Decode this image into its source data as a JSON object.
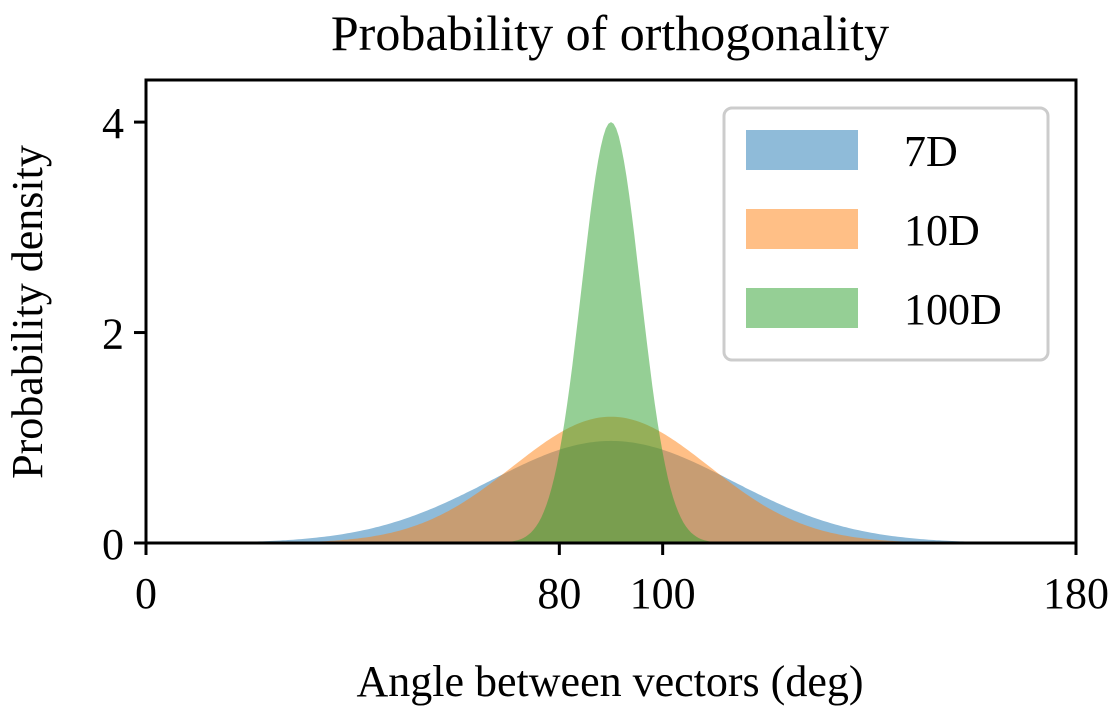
{
  "chart_data": {
    "type": "area",
    "title": "Probability of orthogonality",
    "xlabel": "Angle between vectors (deg)",
    "ylabel": "Probability density",
    "xlim": [
      0,
      180
    ],
    "ylim": [
      0,
      4.4
    ],
    "xticks": [
      0,
      80,
      100,
      180
    ],
    "yticks": [
      0,
      2,
      4
    ],
    "legend_position": "top-right",
    "series": [
      {
        "name": "7D",
        "color": "#1f77b4",
        "mean": 90,
        "peak": 0.97,
        "sigma": 23.5
      },
      {
        "name": "10D",
        "color": "#ff7f0e",
        "mean": 90,
        "peak": 1.2,
        "sigma": 19
      },
      {
        "name": "100D",
        "color": "#2ca02c",
        "mean": 90,
        "peak": 4.0,
        "sigma": 5.7
      }
    ]
  }
}
